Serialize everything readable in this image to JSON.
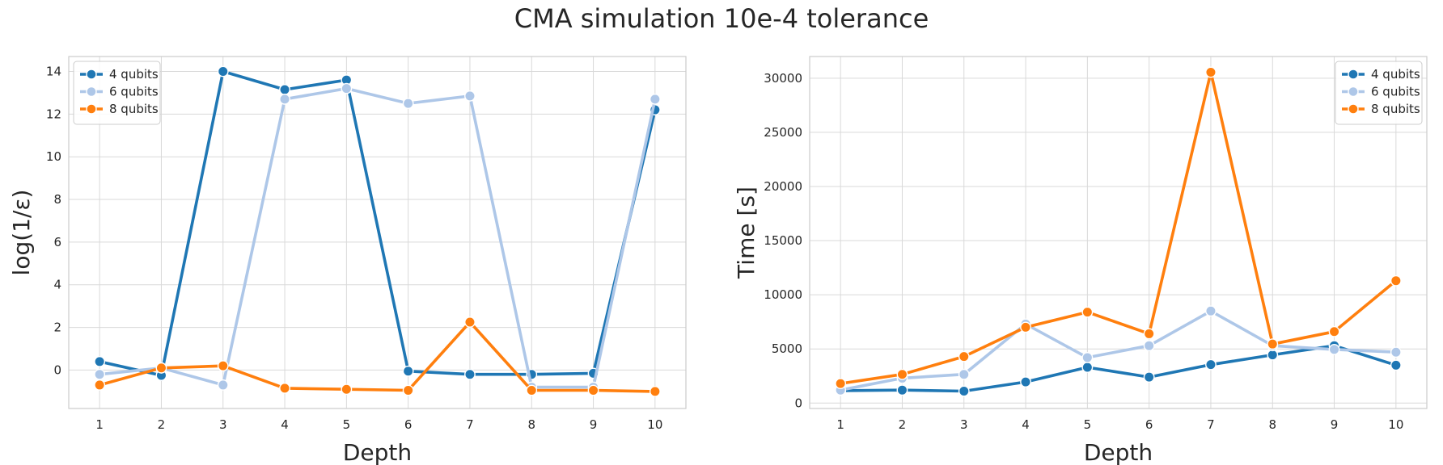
{
  "suptitle": "CMA simulation 10e-4 tolerance",
  "chart_data": [
    {
      "type": "line",
      "x": [
        1,
        2,
        3,
        4,
        5,
        6,
        7,
        8,
        9,
        10
      ],
      "xlabel": "Depth",
      "ylabel": "log(1/ε)",
      "xlim": [
        0.5,
        10.5
      ],
      "ylim": [
        -1.8,
        14.7
      ],
      "yticks": [
        0,
        2,
        4,
        6,
        8,
        10,
        12,
        14
      ],
      "grid": true,
      "legend": "upper-left",
      "series": [
        {
          "name": "4 qubits",
          "color": "#1f77b4",
          "values": [
            0.4,
            -0.25,
            14.0,
            13.15,
            13.6,
            -0.05,
            -0.2,
            -0.2,
            -0.15,
            12.2
          ]
        },
        {
          "name": "6 qubits",
          "color": "#aec7e8",
          "values": [
            -0.2,
            0.1,
            -0.7,
            12.7,
            13.2,
            12.5,
            12.85,
            -0.8,
            -0.8,
            12.7
          ]
        },
        {
          "name": "8 qubits",
          "color": "#ff7f0e",
          "values": [
            -0.7,
            0.1,
            0.2,
            -0.85,
            -0.9,
            -0.95,
            2.25,
            -0.95,
            -0.95,
            -1.0
          ]
        }
      ]
    },
    {
      "type": "line",
      "x": [
        1,
        2,
        3,
        4,
        5,
        6,
        7,
        8,
        9,
        10
      ],
      "xlabel": "Depth",
      "ylabel": "Time [s]",
      "xlim": [
        0.5,
        10.5
      ],
      "ylim": [
        -500,
        32000
      ],
      "yticks": [
        0,
        5000,
        10000,
        15000,
        20000,
        25000,
        30000
      ],
      "grid": true,
      "legend": "upper-right",
      "series": [
        {
          "name": "4 qubits",
          "color": "#1f77b4",
          "values": [
            1150,
            1200,
            1100,
            1950,
            3300,
            2400,
            3550,
            4450,
            5300,
            3500
          ]
        },
        {
          "name": "6 qubits",
          "color": "#aec7e8",
          "values": [
            1200,
            2300,
            2650,
            7300,
            4200,
            5300,
            8500,
            5300,
            4950,
            4700
          ]
        },
        {
          "name": "8 qubits",
          "color": "#ff7f0e",
          "values": [
            1800,
            2650,
            4300,
            7000,
            8400,
            6400,
            30550,
            5450,
            6600,
            11300
          ]
        }
      ]
    }
  ]
}
